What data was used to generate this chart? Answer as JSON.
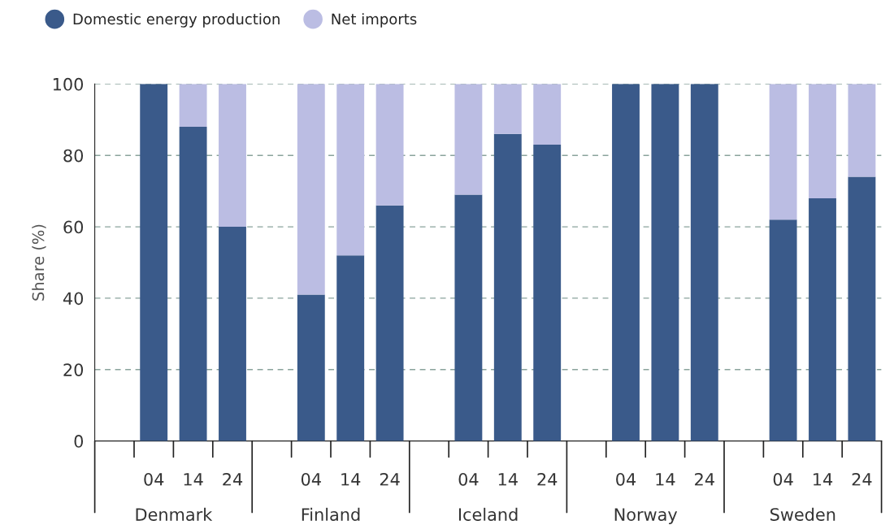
{
  "chart_data": {
    "type": "bar",
    "stacked": true,
    "ylabel": "Share (%)",
    "categories": [
      null,
      "04",
      "14",
      "24",
      null,
      "04",
      "14",
      "24",
      null,
      "04",
      "14",
      "24",
      null,
      "04",
      "14",
      "24",
      null,
      "04",
      "14",
      "24"
    ],
    "series": [
      {
        "name": "Domestic energy production",
        "color": "#3a5a8a",
        "values": [
          null,
          100,
          88,
          60,
          null,
          41,
          52,
          66,
          null,
          69,
          86,
          83,
          null,
          100,
          100,
          100,
          null,
          62,
          68,
          74
        ]
      },
      {
        "name": "Net imports",
        "color": "#bbbde3",
        "values": [
          null,
          0,
          12,
          40,
          null,
          59,
          48,
          34,
          null,
          31,
          14,
          17,
          null,
          0,
          0,
          0,
          null,
          38,
          32,
          26
        ]
      }
    ],
    "annotations": [
      "Denmark",
      "Finland",
      "Iceland",
      "Norway",
      "Sweden"
    ],
    "ylim": [
      0,
      100
    ],
    "yticks": [
      0,
      20,
      40,
      60,
      80,
      100
    ],
    "grid": "y",
    "legend": "top left"
  }
}
